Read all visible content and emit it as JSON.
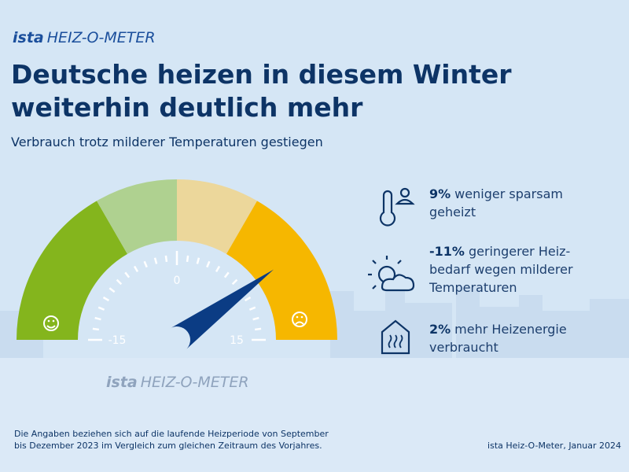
{
  "header": {
    "brand": "ista",
    "product": "HEIZ-O-METER",
    "title_lines": [
      "Deutsche heizen in diesem Winter",
      "weiterhin deutlich mehr"
    ],
    "subtitle": "Verbrauch trotz milderer Temperaturen gestiegen"
  },
  "gauge": {
    "min": -15,
    "max": 15,
    "ticks": [
      -15,
      0,
      15
    ],
    "value": 9,
    "segment_colors": [
      "#84b51d",
      "#afd190",
      "#ecd79b",
      "#f6b700"
    ],
    "needle_color": "#0b3c84",
    "brand": "ista",
    "product": "HEIZ-O-METER"
  },
  "facts": [
    {
      "highlight": "9%",
      "lines": [
        "weniger sparsam",
        "geheizt"
      ]
    },
    {
      "highlight": "-11%",
      "lines": [
        "geringerer Heiz-",
        "bedarf wegen milderer",
        "Temperaturen"
      ]
    },
    {
      "highlight": "2%",
      "lines": [
        "mehr Heizenergie",
        "verbraucht"
      ]
    }
  ],
  "footer": {
    "note_lines": [
      "Die Angaben beziehen sich auf die laufende Heizperiode von September",
      "bis Dezember 2023 im Vergleich zum gleichen Zeitraum des Vorjahres."
    ],
    "source": "ista Heiz-O-Meter, Januar 2024"
  }
}
